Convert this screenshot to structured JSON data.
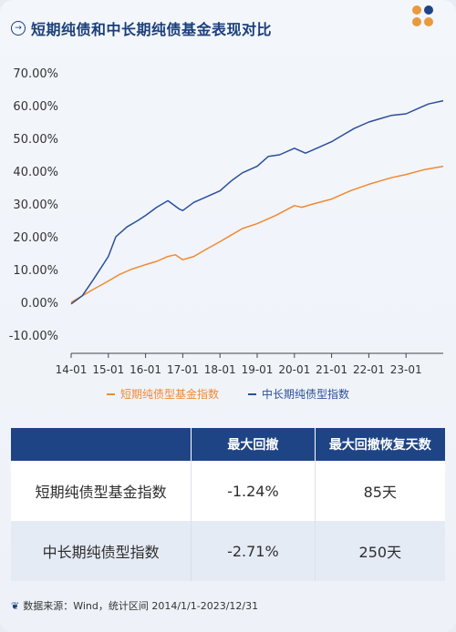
{
  "header": {
    "title": "短期纯债和中长期纯债基金表现对比",
    "icon": "arrow-right-circle-icon"
  },
  "decor": {
    "dots": [
      "#e89a3c",
      "#1e4486",
      "#e89a3c",
      "#e89a3c"
    ]
  },
  "chart_data": {
    "type": "line",
    "title": "短期纯债和中长期纯债基金表现对比",
    "xlabel": "",
    "ylabel": "",
    "x_ticks": [
      "14-01",
      "15-01",
      "16-01",
      "17-01",
      "18-01",
      "19-01",
      "20-01",
      "21-01",
      "22-01",
      "23-01"
    ],
    "y_ticks": [
      "70.00%",
      "60.00%",
      "50.00%",
      "40.00%",
      "30.00%",
      "20.00%",
      "10.00%",
      "0.00%",
      "-10.00%"
    ],
    "ylim": [
      -10,
      70
    ],
    "xlim": [
      2014.0,
      2024.0
    ],
    "grid": false,
    "legend_position": "bottom",
    "series": [
      {
        "name": "短期纯债型基金指数",
        "color": "#ef8a32",
        "x": [
          2014.0,
          2014.3,
          2014.6,
          2015.0,
          2015.3,
          2015.6,
          2016.0,
          2016.3,
          2016.6,
          2016.8,
          2017.0,
          2017.3,
          2017.6,
          2018.0,
          2018.3,
          2018.6,
          2019.0,
          2019.5,
          2020.0,
          2020.2,
          2020.5,
          2021.0,
          2021.5,
          2022.0,
          2022.3,
          2022.6,
          2023.0,
          2023.5,
          2024.0
        ],
        "y": [
          0.0,
          2.0,
          4.0,
          6.5,
          8.5,
          10.0,
          11.5,
          12.5,
          14.0,
          14.5,
          13.0,
          14.0,
          16.0,
          18.5,
          20.5,
          22.5,
          24.0,
          26.5,
          29.5,
          29.0,
          30.0,
          31.5,
          34.0,
          36.0,
          37.0,
          38.0,
          39.0,
          40.5,
          41.5
        ]
      },
      {
        "name": "中长期纯债型指数",
        "color": "#2b4f9c",
        "x": [
          2014.0,
          2014.3,
          2014.6,
          2015.0,
          2015.2,
          2015.5,
          2015.8,
          2016.0,
          2016.3,
          2016.6,
          2016.9,
          2017.0,
          2017.3,
          2017.6,
          2018.0,
          2018.3,
          2018.6,
          2019.0,
          2019.3,
          2019.6,
          2020.0,
          2020.3,
          2020.6,
          2021.0,
          2021.3,
          2021.6,
          2022.0,
          2022.3,
          2022.6,
          2023.0,
          2023.3,
          2023.6,
          2024.0
        ],
        "y": [
          -0.5,
          2.0,
          7.0,
          14.0,
          20.0,
          23.0,
          25.0,
          26.5,
          29.0,
          31.0,
          28.5,
          28.0,
          30.5,
          32.0,
          34.0,
          37.0,
          39.5,
          41.5,
          44.5,
          45.0,
          47.0,
          45.5,
          47.0,
          49.0,
          51.0,
          53.0,
          55.0,
          56.0,
          57.0,
          57.5,
          59.0,
          60.5,
          61.5
        ]
      }
    ]
  },
  "table": {
    "headers": [
      "",
      "最大回撤",
      "最大回撤恢复天数"
    ],
    "rows": [
      [
        "短期纯债型基金指数",
        "-1.24%",
        "85天"
      ],
      [
        "中长期纯债型指数",
        "-2.71%",
        "250天"
      ]
    ]
  },
  "source": {
    "icon": "data-source-icon",
    "text": "数据来源：Wind，统计区间 2014/1/1-2023/12/31"
  }
}
